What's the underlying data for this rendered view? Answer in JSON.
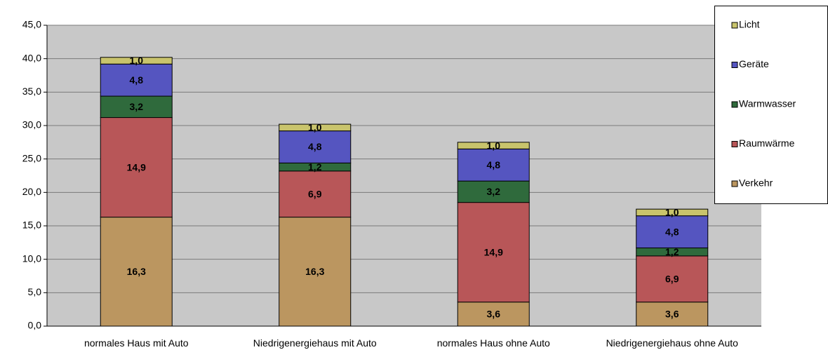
{
  "chart_data": {
    "type": "stacked-bar",
    "categories": [
      "normales Haus mit Auto",
      "Niedrigenergiehaus mit Auto",
      "normales Haus ohne Auto",
      "Niedrigenergiehaus ohne Auto"
    ],
    "series": [
      {
        "name": "Verkehr",
        "color": "#bb9660",
        "values": [
          16.3,
          16.3,
          3.6,
          3.6
        ],
        "value_labels": [
          "16,3",
          "16,3",
          "3,6",
          "3,6"
        ]
      },
      {
        "name": "Raumwärme",
        "color": "#b85658",
        "values": [
          14.9,
          6.9,
          14.9,
          6.9
        ],
        "value_labels": [
          "14,9",
          "6,9",
          "14,9",
          "6,9"
        ]
      },
      {
        "name": "Warmwasser",
        "color": "#2f6a3c",
        "values": [
          3.2,
          1.2,
          3.2,
          1.2
        ],
        "value_labels": [
          "3,2",
          "1,2",
          "3,2",
          "1,2"
        ]
      },
      {
        "name": "Geräte",
        "color": "#5555c0",
        "values": [
          4.8,
          4.8,
          4.8,
          4.8
        ],
        "value_labels": [
          "4,8",
          "4,8",
          "4,8",
          "4,8"
        ]
      },
      {
        "name": "Licht",
        "color": "#c9c46c",
        "values": [
          1.0,
          1.0,
          1.0,
          1.0
        ],
        "value_labels": [
          "1,0",
          "1,0",
          "1,0",
          "1,0"
        ]
      }
    ],
    "ylim": [
      0,
      45
    ],
    "yticks": [
      {
        "value": 0,
        "label": "0,0"
      },
      {
        "value": 5,
        "label": "5,0"
      },
      {
        "value": 10,
        "label": "10,0"
      },
      {
        "value": 15,
        "label": "15,0"
      },
      {
        "value": 20,
        "label": "20,0"
      },
      {
        "value": 25,
        "label": "25,0"
      },
      {
        "value": 30,
        "label": "30,0"
      },
      {
        "value": 35,
        "label": "35,0"
      },
      {
        "value": 40,
        "label": "40,0"
      },
      {
        "value": 45,
        "label": "45,0"
      }
    ],
    "grid": true,
    "legend": "right"
  }
}
